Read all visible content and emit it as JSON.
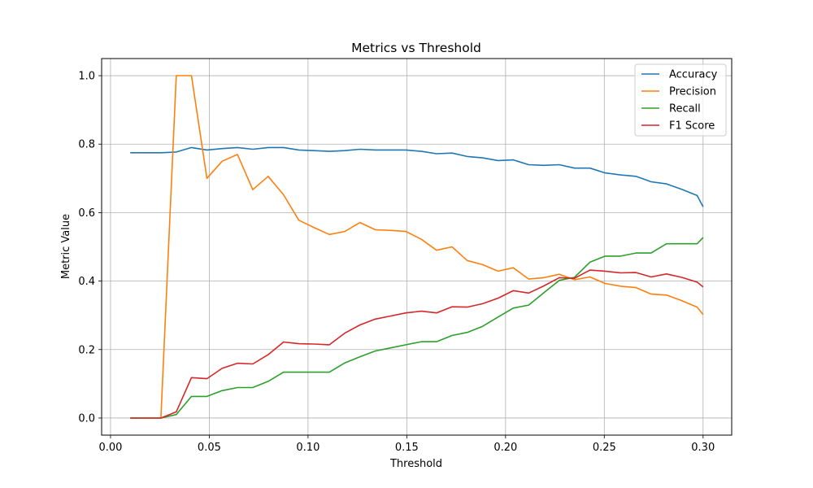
{
  "chart_data": {
    "type": "line",
    "title": "Metrics vs Threshold",
    "xlabel": "Threshold",
    "ylabel": "Metric Value",
    "xlim": [
      -0.0045,
      0.3145
    ],
    "ylim": [
      -0.05,
      1.05
    ],
    "xticks": [
      0.0,
      0.05,
      0.1,
      0.15,
      0.2,
      0.25,
      0.3
    ],
    "xtick_labels": [
      "0.00",
      "0.05",
      "0.10",
      "0.15",
      "0.20",
      "0.25",
      "0.30"
    ],
    "yticks": [
      0.0,
      0.2,
      0.4,
      0.6,
      0.8,
      1.0
    ],
    "ytick_labels": [
      "0.0",
      "0.2",
      "0.4",
      "0.6",
      "0.8",
      "1.0"
    ],
    "grid": true,
    "legend_position": "top-right",
    "x": [
      0.01,
      0.0178,
      0.0255,
      0.0333,
      0.041,
      0.0488,
      0.0565,
      0.0643,
      0.072,
      0.0798,
      0.0876,
      0.0953,
      0.1031,
      0.1108,
      0.1186,
      0.1263,
      0.1341,
      0.1419,
      0.1496,
      0.1574,
      0.1651,
      0.1729,
      0.1806,
      0.1884,
      0.1962,
      0.2039,
      0.2117,
      0.2194,
      0.2272,
      0.2349,
      0.2427,
      0.2504,
      0.2582,
      0.266,
      0.2737,
      0.2815,
      0.2892,
      0.297,
      0.3
    ],
    "series": [
      {
        "name": "Accuracy",
        "color": "#1f77b4",
        "values": [
          0.775,
          0.775,
          0.775,
          0.777,
          0.79,
          0.783,
          0.787,
          0.79,
          0.785,
          0.79,
          0.79,
          0.783,
          0.781,
          0.779,
          0.781,
          0.785,
          0.783,
          0.783,
          0.783,
          0.779,
          0.772,
          0.774,
          0.764,
          0.76,
          0.752,
          0.754,
          0.74,
          0.738,
          0.74,
          0.73,
          0.73,
          0.716,
          0.71,
          0.706,
          0.69,
          0.684,
          0.668,
          0.65,
          0.617
        ]
      },
      {
        "name": "Precision",
        "color": "#ff7f0e",
        "values": [
          0.0,
          0.0,
          0.0,
          1.0,
          1.0,
          0.7,
          0.75,
          0.77,
          0.667,
          0.706,
          0.652,
          0.578,
          0.556,
          0.536,
          0.545,
          0.571,
          0.55,
          0.548,
          0.545,
          0.522,
          0.49,
          0.5,
          0.46,
          0.448,
          0.429,
          0.439,
          0.406,
          0.41,
          0.42,
          0.404,
          0.412,
          0.393,
          0.385,
          0.381,
          0.362,
          0.359,
          0.343,
          0.324,
          0.302
        ]
      },
      {
        "name": "Recall",
        "color": "#2ca02c",
        "values": [
          0.0,
          0.0,
          0.0,
          0.01,
          0.063,
          0.063,
          0.08,
          0.089,
          0.089,
          0.107,
          0.134,
          0.134,
          0.134,
          0.134,
          0.161,
          0.179,
          0.196,
          0.205,
          0.214,
          0.223,
          0.223,
          0.241,
          0.25,
          0.268,
          0.295,
          0.321,
          0.33,
          0.366,
          0.402,
          0.411,
          0.455,
          0.473,
          0.473,
          0.482,
          0.482,
          0.509,
          0.509,
          0.509,
          0.527
        ]
      },
      {
        "name": "F1 Score",
        "color": "#d62728",
        "values": [
          0.0,
          0.0,
          0.0,
          0.018,
          0.118,
          0.115,
          0.145,
          0.16,
          0.158,
          0.185,
          0.222,
          0.217,
          0.216,
          0.214,
          0.248,
          0.272,
          0.289,
          0.298,
          0.307,
          0.312,
          0.307,
          0.325,
          0.324,
          0.334,
          0.35,
          0.372,
          0.365,
          0.386,
          0.41,
          0.408,
          0.432,
          0.429,
          0.424,
          0.425,
          0.412,
          0.421,
          0.411,
          0.397,
          0.383
        ]
      }
    ]
  }
}
